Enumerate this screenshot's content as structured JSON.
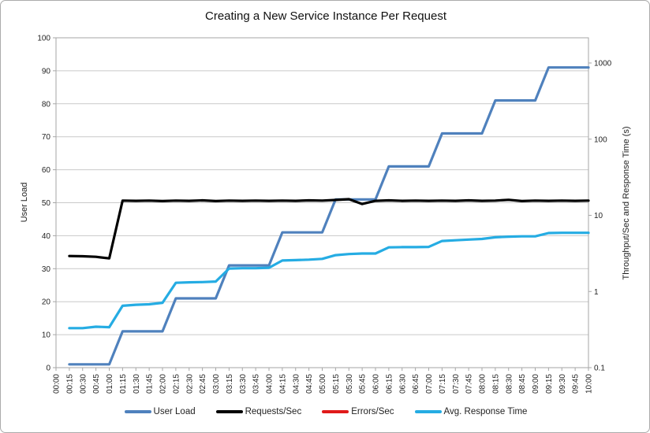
{
  "chart_data": {
    "type": "line",
    "title": "Creating a New Service Instance Per Request",
    "x_tick_labels": [
      "00:00",
      "00:15",
      "00:30",
      "00:45",
      "01:00",
      "01:15",
      "01:30",
      "01:45",
      "02:00",
      "02:15",
      "02:30",
      "02:45",
      "03:00",
      "03:15",
      "03:30",
      "03:45",
      "04:00",
      "04:15",
      "04:30",
      "04:45",
      "05:00",
      "05:15",
      "05:30",
      "05:45",
      "06:00",
      "06:15",
      "06:30",
      "06:45",
      "07:00",
      "07:15",
      "07:30",
      "07:45",
      "08:00",
      "08:15",
      "08:30",
      "08:45",
      "09:00",
      "09:15",
      "09:30",
      "09:45",
      "10:00"
    ],
    "left_axis": {
      "label": "User Load",
      "min": 0,
      "max": 100,
      "step": 10,
      "tick_labels": [
        "0",
        "10",
        "20",
        "30",
        "40",
        "50",
        "60",
        "70",
        "80",
        "90",
        "100"
      ]
    },
    "right_axis": {
      "label": "Throughput/Sec and Response Time (s)",
      "scale": "log",
      "min": 0.1,
      "ticks": [
        0.1,
        1,
        10,
        100,
        1000
      ]
    },
    "legend_position": "bottom",
    "grid": "horizontal",
    "series": [
      {
        "name": "User Load",
        "axis": "left",
        "color": "#4F81BD",
        "start_index": 1,
        "values": [
          1,
          1,
          1,
          1,
          11,
          11,
          11,
          11,
          21,
          21,
          21,
          21,
          31,
          31,
          31,
          31,
          41,
          41,
          41,
          41,
          51,
          51,
          51,
          51,
          61,
          61,
          61,
          61,
          71,
          71,
          71,
          71,
          81,
          81,
          81,
          81,
          91,
          91,
          91,
          91
        ]
      },
      {
        "name": "Requests/Sec",
        "axis": "right",
        "color": "#000000",
        "start_index": 1,
        "values": [
          2.92,
          2.9,
          2.85,
          2.72,
          15.6,
          15.5,
          15.6,
          15.4,
          15.6,
          15.5,
          15.7,
          15.4,
          15.6,
          15.5,
          15.6,
          15.5,
          15.6,
          15.5,
          15.7,
          15.6,
          15.9,
          16.3,
          14.1,
          15.5,
          15.7,
          15.5,
          15.6,
          15.5,
          15.6,
          15.5,
          15.7,
          15.5,
          15.6,
          16.0,
          15.4,
          15.6,
          15.5,
          15.6,
          15.5,
          15.6
        ]
      },
      {
        "name": "Errors/Sec",
        "axis": "right",
        "color": "#E01A1A",
        "start_index": 1,
        "values": [
          0,
          0,
          0,
          0,
          0,
          0,
          0,
          0,
          0,
          0,
          0,
          0,
          0,
          0,
          0,
          0,
          0,
          0,
          0,
          0,
          0,
          0,
          0,
          0,
          0,
          0,
          0,
          0,
          0,
          0,
          0,
          0,
          0,
          0,
          0,
          0,
          0,
          0,
          0,
          0
        ]
      },
      {
        "name": "Avg. Response Time",
        "axis": "right",
        "color": "#25ACE3",
        "start_index": 1,
        "values": [
          0.33,
          0.33,
          0.345,
          0.34,
          0.65,
          0.67,
          0.68,
          0.71,
          1.3,
          1.32,
          1.33,
          1.35,
          2.0,
          2.02,
          2.02,
          2.05,
          2.55,
          2.58,
          2.62,
          2.68,
          3.0,
          3.1,
          3.15,
          3.15,
          3.8,
          3.82,
          3.82,
          3.85,
          4.6,
          4.7,
          4.8,
          4.9,
          5.15,
          5.25,
          5.3,
          5.3,
          5.85,
          5.9,
          5.9,
          5.9
        ]
      }
    ],
    "style": {
      "background": "#FFFFFF",
      "window_border": "#ABABAB",
      "gridline": "#C9C9C9",
      "axis_line": "#A6A6A6",
      "text": "#1F1F1F"
    }
  }
}
